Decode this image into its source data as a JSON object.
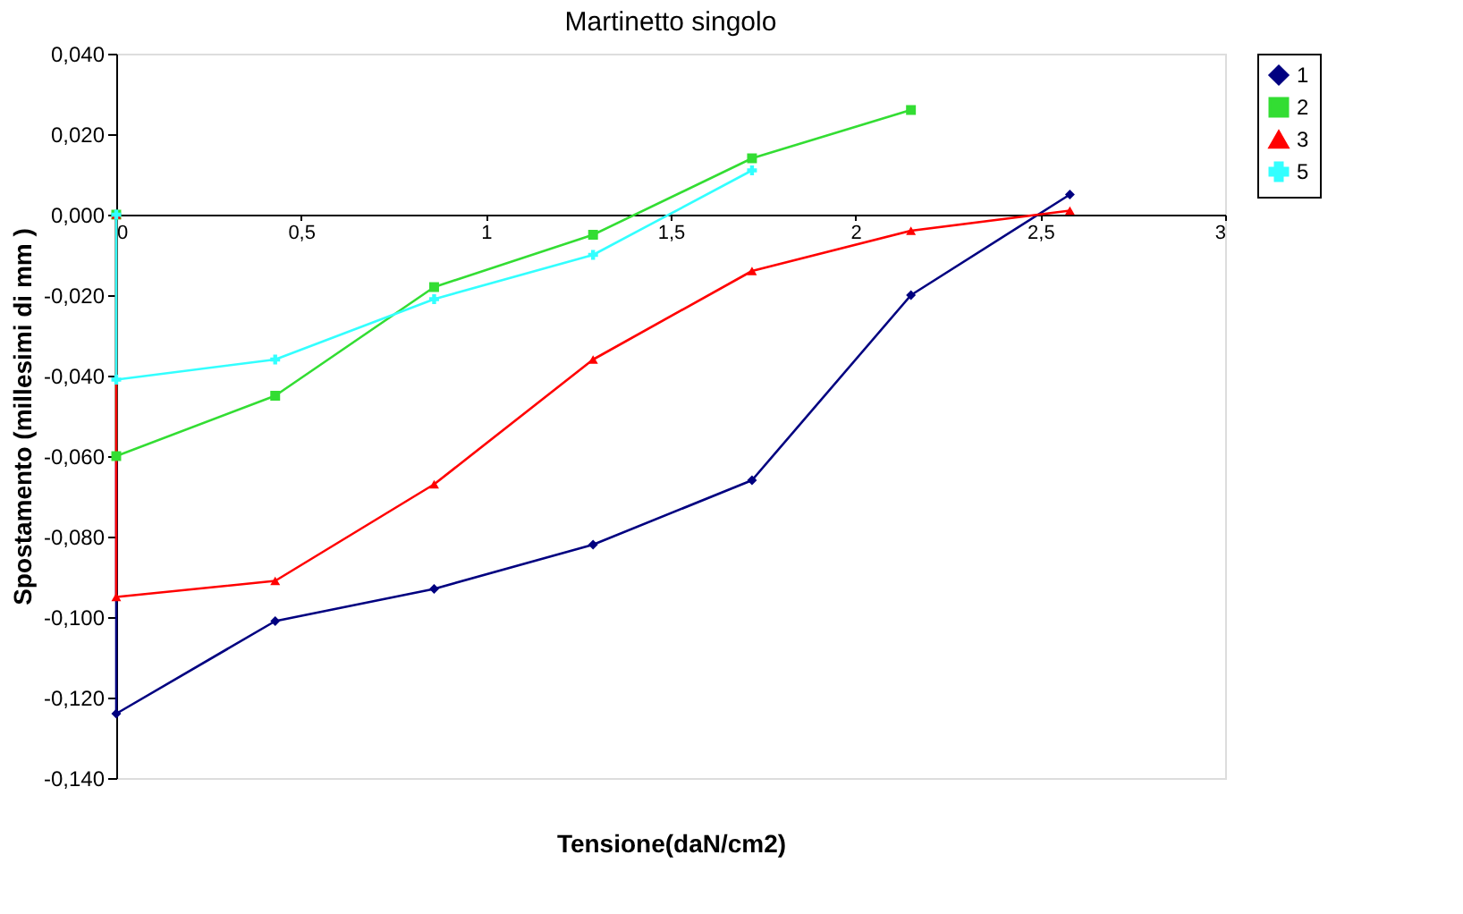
{
  "chart_data": {
    "type": "line",
    "title": "Martinetto singolo",
    "xlabel": "Tensione(daN/cm2)",
    "ylabel": "Spostamento (millesimi di mm )",
    "xlim": [
      0,
      3
    ],
    "xticks": [
      0,
      {
        "value": 0.5,
        "label": "0,5"
      },
      1,
      {
        "value": 1.5,
        "label": "1,5"
      },
      2,
      {
        "value": 2.5,
        "label": "2,5"
      },
      3
    ],
    "ylim": [
      -0.14,
      0.04
    ],
    "yticks": [
      {
        "value": -0.14,
        "label": "-0,140"
      },
      {
        "value": -0.12,
        "label": "-0,120"
      },
      {
        "value": -0.1,
        "label": "-0,100"
      },
      {
        "value": -0.08,
        "label": "-0,080"
      },
      {
        "value": -0.06,
        "label": "-0,060"
      },
      {
        "value": -0.04,
        "label": "-0,040"
      },
      {
        "value": -0.02,
        "label": "-0,020"
      },
      {
        "value": 0,
        "label": "0,000"
      },
      {
        "value": 0.02,
        "label": "0,020"
      },
      {
        "value": 0.04,
        "label": "0,040"
      }
    ],
    "grid": false,
    "legend": "top right",
    "line_style": "solid",
    "series": [
      {
        "name": "1",
        "color": "#000080",
        "marker": "diamond",
        "x": [
          0,
          0,
          0.43,
          0.86,
          1.29,
          1.72,
          2.15,
          2.58
        ],
        "values": [
          0,
          -0.124,
          -0.101,
          -0.093,
          -0.082,
          -0.066,
          -0.02,
          0.005
        ]
      },
      {
        "name": "2",
        "color": "#33dd33",
        "marker": "square",
        "x": [
          0,
          0,
          0.43,
          0.86,
          1.29,
          1.72,
          2.15
        ],
        "values": [
          0,
          -0.06,
          -0.045,
          -0.018,
          -0.005,
          0.014,
          0.026
        ]
      },
      {
        "name": "3",
        "color": "#ff0000",
        "marker": "triangle",
        "x": [
          0,
          0,
          0.43,
          0.86,
          1.29,
          1.72,
          2.15,
          2.58
        ],
        "values": [
          0,
          -0.095,
          -0.091,
          -0.067,
          -0.036,
          -0.014,
          -0.004,
          0.001
        ]
      },
      {
        "name": "5",
        "color": "#33ffff",
        "marker": "cross",
        "x": [
          0,
          0,
          0.43,
          0.86,
          1.29,
          1.72
        ],
        "values": [
          0,
          -0.041,
          -0.036,
          -0.021,
          -0.01,
          0.011
        ]
      }
    ]
  }
}
